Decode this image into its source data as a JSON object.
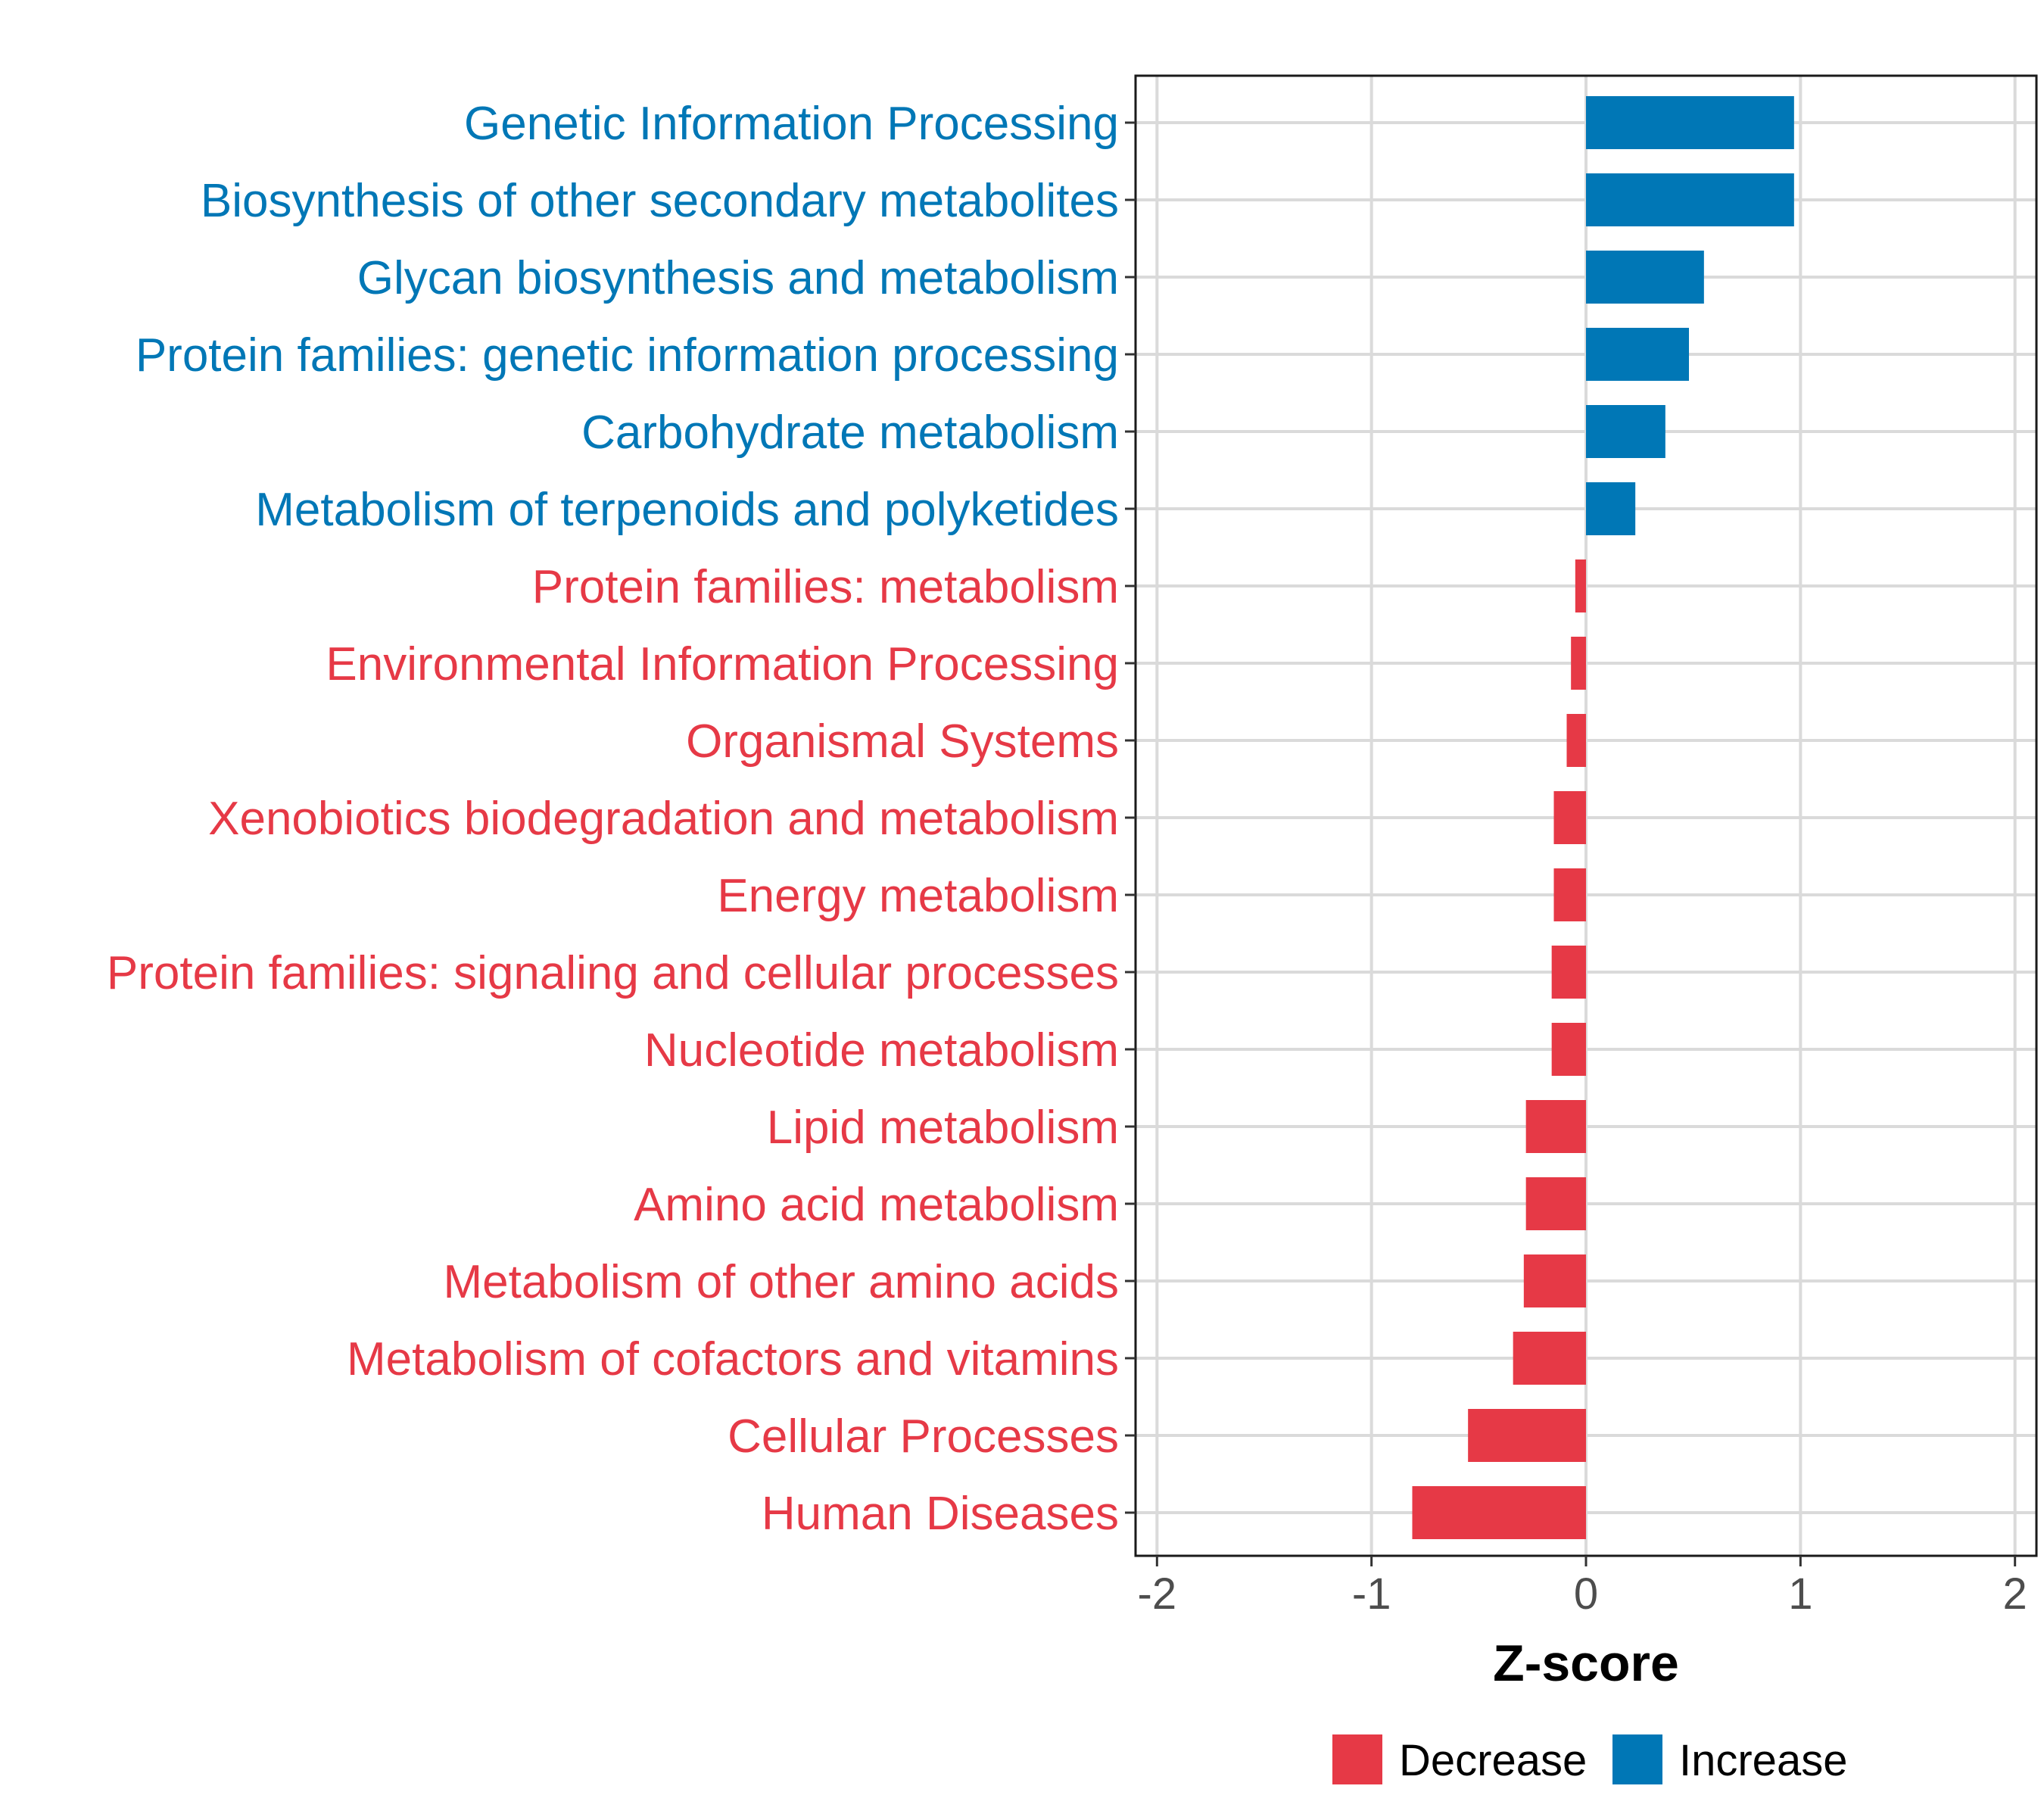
{
  "chart_data": {
    "type": "bar",
    "orientation": "horizontal",
    "title": "",
    "xlabel": "Z-score",
    "ylabel": "",
    "xlim": [
      -2.1,
      2.1
    ],
    "xticks": [
      -2,
      -1,
      0,
      1,
      2
    ],
    "grid": true,
    "legend_position": "bottom",
    "colors": {
      "Decrease": "#e63946",
      "Increase": "#0077b6"
    },
    "legend": [
      {
        "name": "Decrease",
        "color": "#e63946"
      },
      {
        "name": "Increase",
        "color": "#0077b6"
      }
    ],
    "categories": [
      "Genetic Information Processing",
      "Biosynthesis of other secondary metabolites",
      "Glycan biosynthesis and metabolism",
      "Protein families: genetic information processing",
      "Carbohydrate metabolism",
      "Metabolism of terpenoids and polyketides",
      "Protein families: metabolism",
      "Environmental Information Processing",
      "Organismal Systems",
      "Xenobiotics biodegradation and metabolism",
      "Energy metabolism",
      "Protein families: signaling and cellular processes",
      "Nucleotide metabolism",
      "Lipid metabolism",
      "Amino acid metabolism",
      "Metabolism of other amino acids",
      "Metabolism of cofactors and vitamins",
      "Cellular Processes",
      "Human Diseases"
    ],
    "values": [
      0.97,
      0.97,
      0.55,
      0.48,
      0.37,
      0.23,
      -0.05,
      -0.07,
      -0.09,
      -0.15,
      -0.15,
      -0.16,
      -0.16,
      -0.28,
      -0.28,
      -0.29,
      -0.34,
      -0.55,
      -0.81
    ],
    "groups": [
      "Increase",
      "Increase",
      "Increase",
      "Increase",
      "Increase",
      "Increase",
      "Decrease",
      "Decrease",
      "Decrease",
      "Decrease",
      "Decrease",
      "Decrease",
      "Decrease",
      "Decrease",
      "Decrease",
      "Decrease",
      "Decrease",
      "Decrease",
      "Decrease"
    ]
  }
}
